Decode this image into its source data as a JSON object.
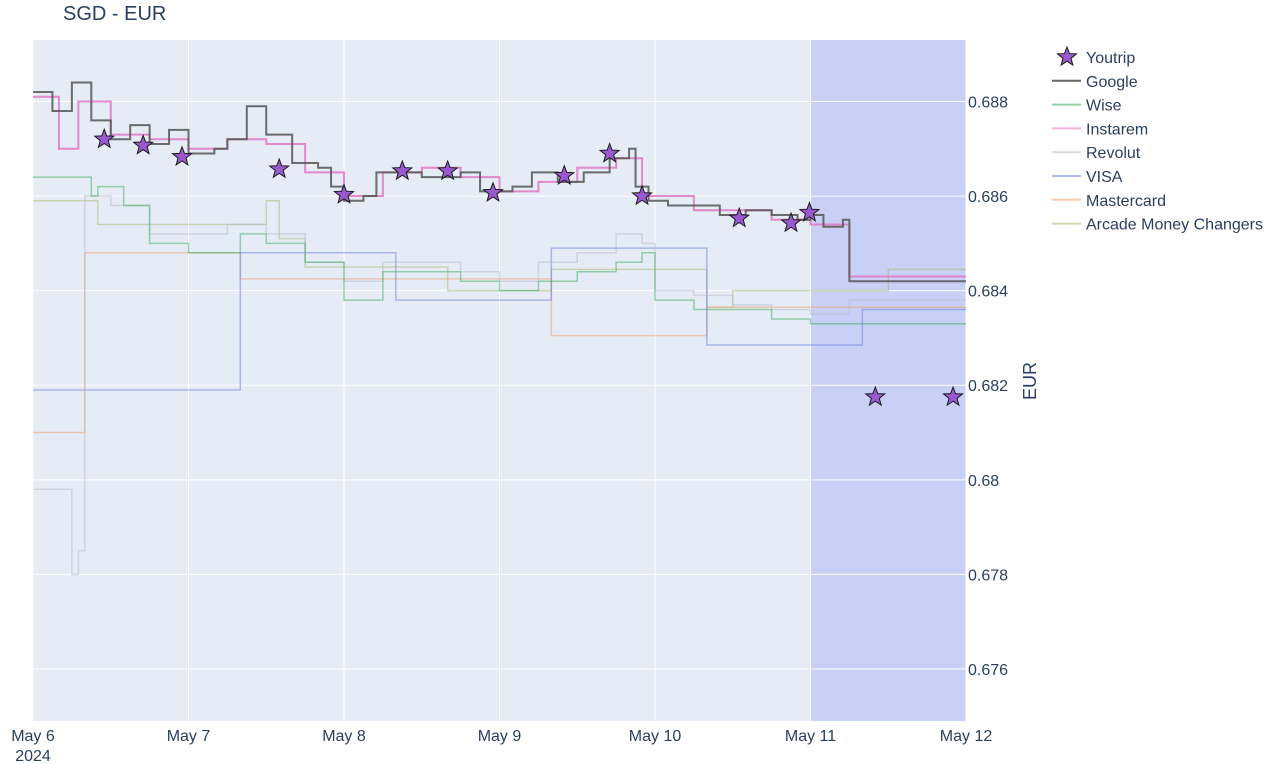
{
  "chart_data": {
    "type": "line",
    "title": "SGD - EUR",
    "xlabel": "",
    "ylabel": "EUR",
    "x_range": [
      "2024-05-06",
      "2024-05-12"
    ],
    "ylim": [
      0.6749,
      0.6893
    ],
    "x_ticks": [
      {
        "date": "2024-05-06",
        "label": "May 6",
        "sublabel": "2024"
      },
      {
        "date": "2024-05-07",
        "label": "May 7"
      },
      {
        "date": "2024-05-08",
        "label": "May 8"
      },
      {
        "date": "2024-05-09",
        "label": "May 9"
      },
      {
        "date": "2024-05-10",
        "label": "May 10"
      },
      {
        "date": "2024-05-11",
        "label": "May 11"
      },
      {
        "date": "2024-05-12",
        "label": "May 12"
      }
    ],
    "y_ticks": [
      {
        "value": 0.676,
        "label": "0.676"
      },
      {
        "value": 0.678,
        "label": "0.678"
      },
      {
        "value": 0.68,
        "label": "0.68"
      },
      {
        "value": 0.682,
        "label": "0.682"
      },
      {
        "value": 0.684,
        "label": "0.684"
      },
      {
        "value": 0.686,
        "label": "0.686"
      },
      {
        "value": 0.688,
        "label": "0.688"
      }
    ],
    "y_axis_side": "right",
    "grid": true,
    "legend_position": "right",
    "highlight_region": {
      "x_start": "2024-05-11",
      "x_end": "2024-05-12",
      "color": "#c8d0f5"
    },
    "series": [
      {
        "name": "Youtrip",
        "mode": "markers",
        "marker": "star",
        "color": "#9b59d0",
        "points": [
          [
            "2024-05-06 11:00",
            0.6872
          ],
          [
            "2024-05-06 17:00",
            0.68707
          ],
          [
            "2024-05-06 23:00",
            0.68683
          ],
          [
            "2024-05-07 14:00",
            0.68657
          ],
          [
            "2024-05-08 00:00",
            0.68603
          ],
          [
            "2024-05-08 09:00",
            0.68653
          ],
          [
            "2024-05-08 16:00",
            0.68653
          ],
          [
            "2024-05-08 23:00",
            0.68607
          ],
          [
            "2024-05-09 10:00",
            0.68643
          ],
          [
            "2024-05-09 17:00",
            0.6869
          ],
          [
            "2024-05-09 22:00",
            0.686
          ],
          [
            "2024-05-10 13:00",
            0.68553
          ],
          [
            "2024-05-10 21:00",
            0.68543
          ],
          [
            "2024-05-10 23:50",
            0.68565
          ],
          [
            "2024-05-11 10:00",
            0.68175
          ],
          [
            "2024-05-11 22:00",
            0.68175
          ]
        ]
      },
      {
        "name": "Google",
        "mode": "lines",
        "color": "#555555",
        "points": [
          [
            "2024-05-06 00:00",
            0.6882
          ],
          [
            "2024-05-06 03:00",
            0.6878
          ],
          [
            "2024-05-06 06:00",
            0.6884
          ],
          [
            "2024-05-06 09:00",
            0.6876
          ],
          [
            "2024-05-06 12:00",
            0.6872
          ],
          [
            "2024-05-06 15:00",
            0.6875
          ],
          [
            "2024-05-06 18:00",
            0.6871
          ],
          [
            "2024-05-06 21:00",
            0.6874
          ],
          [
            "2024-05-07 00:00",
            0.6869
          ],
          [
            "2024-05-07 04:00",
            0.687
          ],
          [
            "2024-05-07 06:00",
            0.6872
          ],
          [
            "2024-05-07 09:00",
            0.6879
          ],
          [
            "2024-05-07 12:00",
            0.6873
          ],
          [
            "2024-05-07 16:00",
            0.6867
          ],
          [
            "2024-05-07 20:00",
            0.6866
          ],
          [
            "2024-05-07 22:00",
            0.6862
          ],
          [
            "2024-05-08 00:00",
            0.6859
          ],
          [
            "2024-05-08 03:00",
            0.686
          ],
          [
            "2024-05-08 05:00",
            0.6865
          ],
          [
            "2024-05-08 12:00",
            0.6864
          ],
          [
            "2024-05-08 18:00",
            0.6865
          ],
          [
            "2024-05-08 21:00",
            0.6861
          ],
          [
            "2024-05-09 02:00",
            0.6862
          ],
          [
            "2024-05-09 05:00",
            0.6865
          ],
          [
            "2024-05-09 09:00",
            0.6863
          ],
          [
            "2024-05-09 13:00",
            0.6865
          ],
          [
            "2024-05-09 17:00",
            0.6868
          ],
          [
            "2024-05-09 20:00",
            0.687
          ],
          [
            "2024-05-09 21:00",
            0.6862
          ],
          [
            "2024-05-09 23:00",
            0.6859
          ],
          [
            "2024-05-10 02:00",
            0.6858
          ],
          [
            "2024-05-10 06:00",
            0.6858
          ],
          [
            "2024-05-10 10:00",
            0.6856
          ],
          [
            "2024-05-10 14:00",
            0.6857
          ],
          [
            "2024-05-10 18:00",
            0.6856
          ],
          [
            "2024-05-10 22:00",
            0.6855
          ],
          [
            "2024-05-11 00:00",
            0.6856
          ],
          [
            "2024-05-11 02:00",
            0.68535
          ],
          [
            "2024-05-11 05:00",
            0.6855
          ],
          [
            "2024-05-11 06:00",
            0.6842
          ],
          [
            "2024-05-12 00:00",
            0.6842
          ]
        ]
      },
      {
        "name": "Wise",
        "mode": "lines",
        "color": "#3daa5b",
        "points": [
          [
            "2024-05-06 00:00",
            0.6864
          ],
          [
            "2024-05-06 08:00",
            0.6864
          ],
          [
            "2024-05-06 09:00",
            0.686
          ],
          [
            "2024-05-06 10:00",
            0.6862
          ],
          [
            "2024-05-06 14:00",
            0.6858
          ],
          [
            "2024-05-06 18:00",
            0.685
          ],
          [
            "2024-05-07 00:00",
            0.6848
          ],
          [
            "2024-05-07 08:00",
            0.6852
          ],
          [
            "2024-05-07 12:00",
            0.685
          ],
          [
            "2024-05-07 18:00",
            0.6846
          ],
          [
            "2024-05-08 00:00",
            0.6838
          ],
          [
            "2024-05-08 06:00",
            0.6844
          ],
          [
            "2024-05-08 12:00",
            0.6844
          ],
          [
            "2024-05-08 18:00",
            0.6842
          ],
          [
            "2024-05-09 00:00",
            0.684
          ],
          [
            "2024-05-09 06:00",
            0.6842
          ],
          [
            "2024-05-09 12:00",
            0.6844
          ],
          [
            "2024-05-09 18:00",
            0.6846
          ],
          [
            "2024-05-09 22:00",
            0.6848
          ],
          [
            "2024-05-10 00:00",
            0.6838
          ],
          [
            "2024-05-10 06:00",
            0.6836
          ],
          [
            "2024-05-10 12:00",
            0.6836
          ],
          [
            "2024-05-10 18:00",
            0.6834
          ],
          [
            "2024-05-11 00:00",
            0.6833
          ],
          [
            "2024-05-11 05:00",
            0.6833
          ],
          [
            "2024-05-11 06:00",
            0.6833
          ],
          [
            "2024-05-12 00:00",
            0.6833
          ]
        ]
      },
      {
        "name": "Instarem",
        "mode": "lines",
        "color": "#e377c2",
        "points": [
          [
            "2024-05-06 00:00",
            0.6881
          ],
          [
            "2024-05-06 04:00",
            0.687
          ],
          [
            "2024-05-06 07:00",
            0.688
          ],
          [
            "2024-05-06 12:00",
            0.6873
          ],
          [
            "2024-05-06 18:00",
            0.6872
          ],
          [
            "2024-05-07 00:00",
            0.687
          ],
          [
            "2024-05-07 06:00",
            0.6872
          ],
          [
            "2024-05-07 12:00",
            0.6871
          ],
          [
            "2024-05-07 18:00",
            0.6865
          ],
          [
            "2024-05-08 00:00",
            0.686
          ],
          [
            "2024-05-08 06:00",
            0.6865
          ],
          [
            "2024-05-08 12:00",
            0.6866
          ],
          [
            "2024-05-08 18:00",
            0.6864
          ],
          [
            "2024-05-09 00:00",
            0.6861
          ],
          [
            "2024-05-09 06:00",
            0.6863
          ],
          [
            "2024-05-09 12:00",
            0.6866
          ],
          [
            "2024-05-09 18:00",
            0.6868
          ],
          [
            "2024-05-09 22:00",
            0.686
          ],
          [
            "2024-05-10 06:00",
            0.6857
          ],
          [
            "2024-05-10 12:00",
            0.6857
          ],
          [
            "2024-05-10 18:00",
            0.6855
          ],
          [
            "2024-05-11 00:00",
            0.6854
          ],
          [
            "2024-05-11 06:00",
            0.6843
          ],
          [
            "2024-05-12 00:00",
            0.6843
          ]
        ]
      },
      {
        "name": "Revolut",
        "mode": "lines",
        "color": "#b9b9c9",
        "points": [
          [
            "2024-05-06 00:00",
            0.6798
          ],
          [
            "2024-05-06 05:00",
            0.6798
          ],
          [
            "2024-05-06 06:00",
            0.678
          ],
          [
            "2024-05-06 07:00",
            0.6785
          ],
          [
            "2024-05-06 08:00",
            0.686
          ],
          [
            "2024-05-06 12:00",
            0.6858
          ],
          [
            "2024-05-06 18:00",
            0.6852
          ],
          [
            "2024-05-07 00:00",
            0.6852
          ],
          [
            "2024-05-07 06:00",
            0.6854
          ],
          [
            "2024-05-07 12:00",
            0.6852
          ],
          [
            "2024-05-07 18:00",
            0.6846
          ],
          [
            "2024-05-08 00:00",
            0.6842
          ],
          [
            "2024-05-08 06:00",
            0.6846
          ],
          [
            "2024-05-08 12:00",
            0.6846
          ],
          [
            "2024-05-08 18:00",
            0.6844
          ],
          [
            "2024-05-09 00:00",
            0.6842
          ],
          [
            "2024-05-09 06:00",
            0.6846
          ],
          [
            "2024-05-09 12:00",
            0.6848
          ],
          [
            "2024-05-09 18:00",
            0.6852
          ],
          [
            "2024-05-09 22:00",
            0.685
          ],
          [
            "2024-05-10 00:00",
            0.684
          ],
          [
            "2024-05-10 06:00",
            0.6839
          ],
          [
            "2024-05-10 12:00",
            0.6837
          ],
          [
            "2024-05-10 18:00",
            0.6836
          ],
          [
            "2024-05-11 00:00",
            0.6835
          ],
          [
            "2024-05-11 06:00",
            0.6838
          ],
          [
            "2024-05-12 00:00",
            0.6838
          ]
        ]
      },
      {
        "name": "VISA",
        "mode": "lines",
        "color": "#6a7ee0",
        "points": [
          [
            "2024-05-06 00:00",
            0.6819
          ],
          [
            "2024-05-07 08:00",
            0.6819
          ],
          [
            "2024-05-07 08:00",
            0.6848
          ],
          [
            "2024-05-08 08:00",
            0.6848
          ],
          [
            "2024-05-08 08:00",
            0.6838
          ],
          [
            "2024-05-09 08:00",
            0.6838
          ],
          [
            "2024-05-09 08:00",
            0.6849
          ],
          [
            "2024-05-10 08:00",
            0.6849
          ],
          [
            "2024-05-10 08:00",
            0.68285
          ],
          [
            "2024-05-11 08:00",
            0.68285
          ],
          [
            "2024-05-11 08:00",
            0.6836
          ],
          [
            "2024-05-12 00:00",
            0.6836
          ]
        ]
      },
      {
        "name": "Mastercard",
        "mode": "lines",
        "color": "#f0a070",
        "points": [
          [
            "2024-05-06 00:00",
            0.681
          ],
          [
            "2024-05-06 08:00",
            0.681
          ],
          [
            "2024-05-06 08:00",
            0.6848
          ],
          [
            "2024-05-07 08:00",
            0.6848
          ],
          [
            "2024-05-07 08:00",
            0.68425
          ],
          [
            "2024-05-09 08:00",
            0.68425
          ],
          [
            "2024-05-09 08:00",
            0.68305
          ],
          [
            "2024-05-10 08:00",
            0.68305
          ],
          [
            "2024-05-10 08:00",
            0.68365
          ],
          [
            "2024-05-12 00:00",
            0.68365
          ]
        ]
      },
      {
        "name": "Arcade Money Changers",
        "mode": "lines",
        "color": "#a8b870",
        "points": [
          [
            "2024-05-06 00:00",
            0.6859
          ],
          [
            "2024-05-06 10:00",
            0.6859
          ],
          [
            "2024-05-06 10:00",
            0.6854
          ],
          [
            "2024-05-07 10:00",
            0.6854
          ],
          [
            "2024-05-07 12:00",
            0.6859
          ],
          [
            "2024-05-07 14:00",
            0.6851
          ],
          [
            "2024-05-07 18:00",
            0.6851
          ],
          [
            "2024-05-07 18:00",
            0.6845
          ],
          [
            "2024-05-08 16:00",
            0.6845
          ],
          [
            "2024-05-08 16:00",
            0.684
          ],
          [
            "2024-05-09 08:00",
            0.684
          ],
          [
            "2024-05-09 08:00",
            0.68445
          ],
          [
            "2024-05-10 08:00",
            0.68445
          ],
          [
            "2024-05-10 08:00",
            0.68365
          ],
          [
            "2024-05-10 12:00",
            0.68365
          ],
          [
            "2024-05-10 12:00",
            0.684
          ],
          [
            "2024-05-11 12:00",
            0.684
          ],
          [
            "2024-05-11 12:00",
            0.68445
          ],
          [
            "2024-05-12 00:00",
            0.68445
          ]
        ]
      }
    ]
  }
}
